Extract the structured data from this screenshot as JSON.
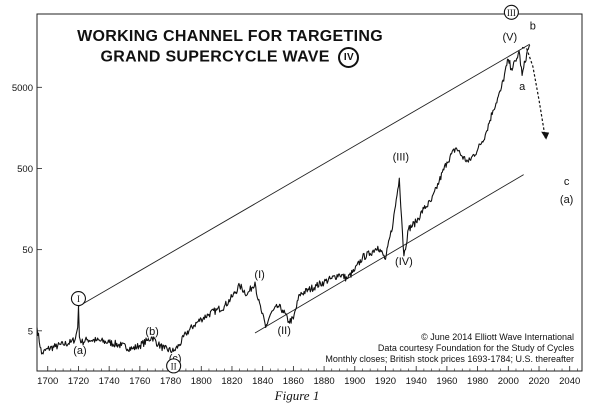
{
  "title_line1": "WORKING CHANNEL FOR TARGETING",
  "title_line2": "GRAND SUPERCYCLE WAVE",
  "title_wave": "IV",
  "credits": [
    "© June 2014 Elliott Wave International",
    "Data courtesy Foundation for the Study of Cycles",
    "Monthly closes; British stock prices 1693-1784; U.S. thereafter"
  ],
  "caption": "Figure 1",
  "chart_data": {
    "type": "line",
    "scale": "log",
    "xlim": [
      1693,
      2048
    ],
    "ylim": [
      1.6,
      40000
    ],
    "x_ticks": [
      1700,
      1720,
      1740,
      1760,
      1780,
      1800,
      1820,
      1840,
      1860,
      1880,
      1900,
      1920,
      1940,
      1960,
      1980,
      2000,
      2020,
      2040
    ],
    "y_ticks": [
      5,
      50,
      500,
      5000
    ],
    "series": [
      {
        "x": [
          1693,
          1696,
          1700,
          1705,
          1710,
          1715,
          1718,
          1719.5,
          1720,
          1720.6,
          1722,
          1726,
          1732,
          1740,
          1748,
          1755,
          1760,
          1765,
          1768,
          1772,
          1776,
          1782,
          1786,
          1790,
          1795,
          1800,
          1805,
          1810,
          1815,
          1820,
          1825,
          1830,
          1835,
          1837,
          1839,
          1842,
          1845,
          1850,
          1853,
          1857,
          1860,
          1864,
          1870,
          1875,
          1880,
          1885,
          1890,
          1895,
          1900,
          1905,
          1910,
          1915,
          1920,
          1925,
          1929,
          1932,
          1935,
          1940,
          1945,
          1950,
          1955,
          1960,
          1966,
          1970,
          1974,
          1980,
          1985,
          1990,
          1995,
          2000,
          2002,
          2005,
          2007,
          2009,
          2012,
          2014
        ],
        "y": [
          5.5,
          2.6,
          3.0,
          3.2,
          3.4,
          3.6,
          4.0,
          5.5,
          10,
          4.2,
          3.6,
          3.9,
          3.8,
          3.6,
          3.3,
          3.0,
          3.3,
          3.8,
          4.2,
          3.4,
          3.0,
          2.8,
          3.4,
          4.6,
          5.8,
          7.0,
          8.0,
          9.0,
          10,
          13,
          18,
          14,
          20,
          12,
          9.0,
          5.5,
          8.0,
          10,
          9.0,
          6.5,
          7.0,
          14,
          16,
          18,
          20,
          22,
          25,
          22,
          28,
          40,
          45,
          55,
          38,
          110,
          380,
          42,
          90,
          110,
          160,
          200,
          350,
          600,
          900,
          700,
          600,
          850,
          1300,
          2600,
          4500,
          11000,
          8500,
          10500,
          14000,
          7000,
          13000,
          16500
        ]
      }
    ],
    "channel_upper": {
      "x": [
        1720,
        2014
      ],
      "y": [
        10,
        17000
      ]
    },
    "channel_lower": {
      "x": [
        1835,
        2010
      ],
      "y": [
        4.7,
        420
      ]
    },
    "projection": {
      "x": [
        2009,
        2012,
        2016,
        2020,
        2024
      ],
      "y": [
        15500,
        15000,
        9000,
        3500,
        1200
      ]
    },
    "annotations": [
      {
        "text": "I",
        "x": 1720,
        "y": 12.5,
        "style": "circled"
      },
      {
        "text": "(a)",
        "x": 1721,
        "y": 2.9
      },
      {
        "text": "(b)",
        "x": 1768,
        "y": 5.0
      },
      {
        "text": "(c)",
        "x": 1783,
        "y": 2.3
      },
      {
        "text": "II",
        "x": 1782,
        "y": 1.85,
        "style": "circled"
      },
      {
        "text": "(I)",
        "x": 1838,
        "y": 25
      },
      {
        "text": "(II)",
        "x": 1854,
        "y": 5.1
      },
      {
        "text": "(III)",
        "x": 1930,
        "y": 700
      },
      {
        "text": "(IV)",
        "x": 1932,
        "y": 36
      },
      {
        "text": "III",
        "x": 2002,
        "y": 42000,
        "style": "circled"
      },
      {
        "text": "(V)",
        "x": 2001,
        "y": 21000
      },
      {
        "text": "b",
        "x": 2016,
        "y": 29000
      },
      {
        "text": "a",
        "x": 2009,
        "y": 5200
      },
      {
        "text": "c",
        "x": 2038,
        "y": 350
      },
      {
        "text": "(a)",
        "x": 2038,
        "y": 210
      }
    ]
  }
}
